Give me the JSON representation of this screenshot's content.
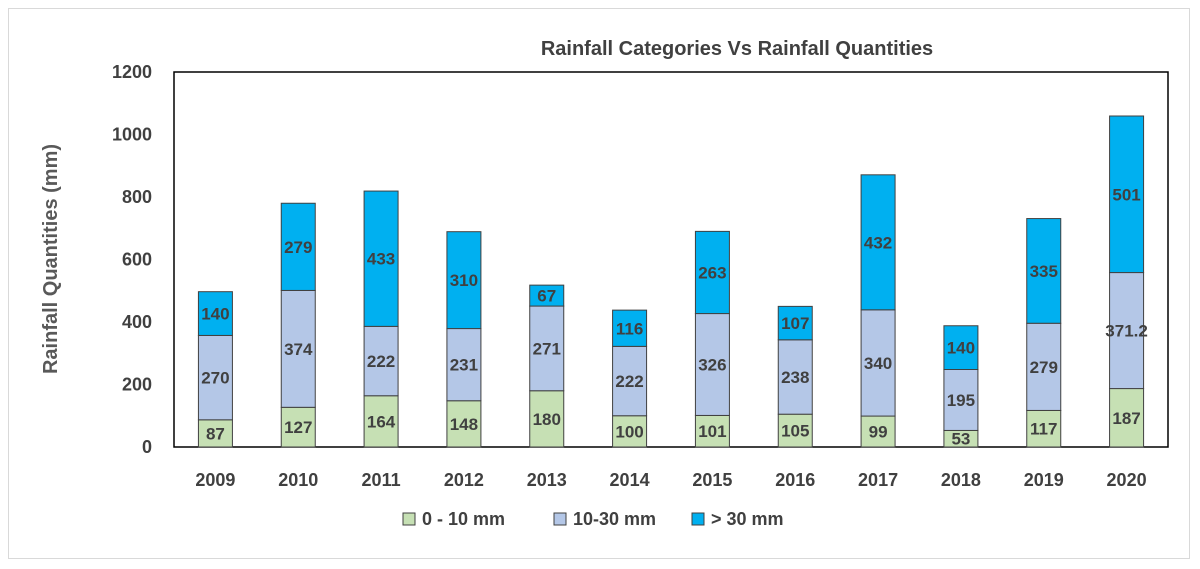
{
  "chart_data": {
    "type": "bar",
    "stacked": true,
    "title": "Rainfall Categories Vs Rainfall Quantities",
    "xlabel": "",
    "ylabel": "Rainfall Quantities (mm)",
    "ylim": [
      0,
      1200
    ],
    "yticks": [
      0,
      200,
      400,
      600,
      800,
      1000,
      1200
    ],
    "grid": false,
    "legend_position": "bottom",
    "categories": [
      "2009",
      "2010",
      "2011",
      "2012",
      "2013",
      "2014",
      "2015",
      "2016",
      "2017",
      "2018",
      "2019",
      "2020"
    ],
    "series": [
      {
        "name": "0 - 10 mm",
        "color": "#c6e0b4",
        "values": [
          87,
          127,
          164,
          148,
          180,
          100,
          101,
          105,
          99,
          53,
          117,
          187
        ],
        "labels": [
          "87",
          "127",
          "164",
          "148",
          "180",
          "100",
          "101",
          "105",
          "99",
          "53",
          "117",
          "187"
        ]
      },
      {
        "name": "10-30 mm",
        "color": "#b4c7e7",
        "values": [
          270,
          374,
          222,
          231,
          271,
          222,
          326,
          238,
          340,
          195,
          279,
          371.2
        ],
        "labels": [
          "270",
          "374",
          "222",
          "231",
          "271",
          "222",
          "326",
          "238",
          "340",
          "195",
          "279",
          "371.2"
        ]
      },
      {
        "name": "> 30 mm",
        "color": "#00b0f0",
        "values": [
          140,
          279,
          433,
          310,
          67,
          116,
          263,
          107,
          432,
          140,
          335,
          501
        ],
        "labels": [
          "140",
          "279",
          "433",
          "310",
          "67",
          "116",
          "263",
          "107",
          "432",
          "140",
          "335",
          "501"
        ]
      }
    ]
  }
}
